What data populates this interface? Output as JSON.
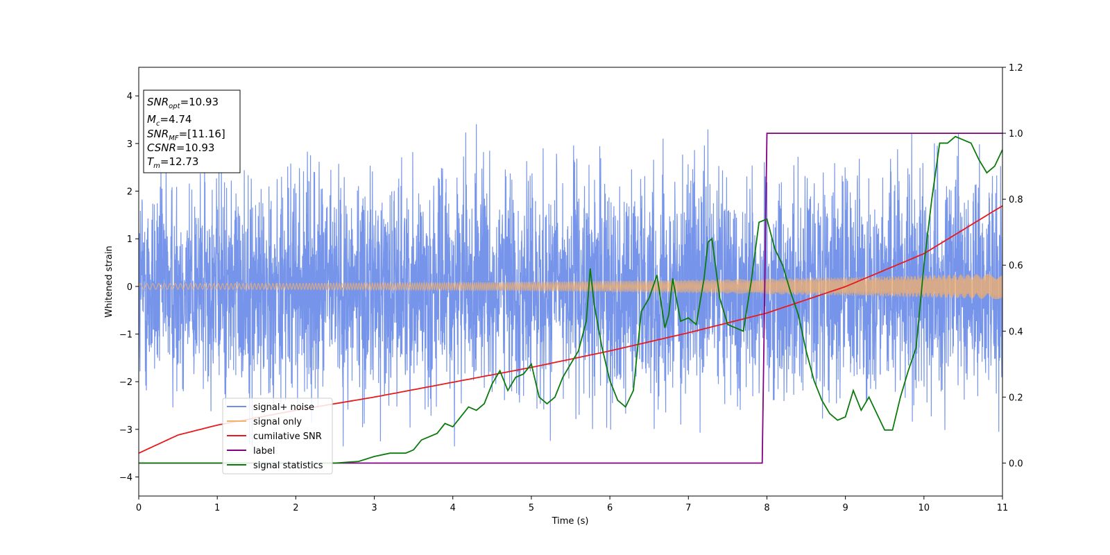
{
  "chart_data": {
    "type": "line",
    "title": "",
    "xlabel": "Time (s)",
    "ylabel": "Whitened strain",
    "xlim": [
      0,
      11
    ],
    "ylim": [
      -4.4,
      4.6
    ],
    "y2lim": [
      -0.1,
      1.2
    ],
    "xticks": [
      "0",
      "1",
      "2",
      "3",
      "4",
      "5",
      "6",
      "7",
      "8",
      "9",
      "10",
      "11"
    ],
    "yticks": [
      "−4",
      "−3",
      "−2",
      "−1",
      "0",
      "1",
      "2",
      "3",
      "4"
    ],
    "y2ticks": [
      "0.0",
      "0.2",
      "0.4",
      "0.6",
      "0.8",
      "1.0",
      "1.2"
    ],
    "grid": false,
    "legend_position": "lower-left",
    "series": [
      {
        "name": "signal+ noise",
        "axis": "left",
        "color": "#6f8ee8",
        "kind": "noise",
        "description_values": {
          "std": 1.1,
          "min": -3.95,
          "max": 4.15,
          "duration": 11
        }
      },
      {
        "name": "signal only",
        "axis": "left",
        "color": "#f5b06a",
        "kind": "chirp",
        "amplitude_start": 0.06,
        "amplitude_end": 0.27
      },
      {
        "name": "cumilative SNR",
        "axis": "right",
        "color": "#e8191b",
        "x": [
          0,
          0.5,
          1,
          2,
          3,
          4,
          5,
          6,
          7,
          8,
          9,
          10,
          11
        ],
        "y": [
          0.03,
          0.085,
          0.115,
          0.16,
          0.2,
          0.245,
          0.29,
          0.34,
          0.395,
          0.455,
          0.535,
          0.635,
          0.78
        ]
      },
      {
        "name": "label",
        "axis": "right",
        "color": "#800080",
        "x": [
          0,
          7.94,
          8.0,
          11
        ],
        "y": [
          0.0,
          0.0,
          1.0,
          1.0
        ]
      },
      {
        "name": "signal statistics",
        "axis": "right",
        "color": "#0a7a0a",
        "x": [
          0,
          2.5,
          2.8,
          3.0,
          3.2,
          3.4,
          3.5,
          3.6,
          3.8,
          3.9,
          4.0,
          4.1,
          4.2,
          4.3,
          4.4,
          4.5,
          4.6,
          4.7,
          4.8,
          4.9,
          5.0,
          5.1,
          5.2,
          5.3,
          5.4,
          5.5,
          5.6,
          5.7,
          5.75,
          5.8,
          5.9,
          6.0,
          6.1,
          6.2,
          6.3,
          6.4,
          6.5,
          6.6,
          6.7,
          6.75,
          6.8,
          6.9,
          7.0,
          7.1,
          7.2,
          7.25,
          7.3,
          7.4,
          7.5,
          7.6,
          7.7,
          7.8,
          7.9,
          8.0,
          8.1,
          8.2,
          8.3,
          8.4,
          8.5,
          8.6,
          8.7,
          8.8,
          8.9,
          9.0,
          9.1,
          9.2,
          9.3,
          9.4,
          9.5,
          9.6,
          9.7,
          9.8,
          9.9,
          10.0,
          10.1,
          10.2,
          10.3,
          10.4,
          10.5,
          10.6,
          10.7,
          10.8,
          10.9,
          11.0
        ],
        "y": [
          0.0,
          0.0,
          0.005,
          0.02,
          0.03,
          0.03,
          0.04,
          0.07,
          0.09,
          0.12,
          0.11,
          0.14,
          0.17,
          0.16,
          0.18,
          0.24,
          0.28,
          0.22,
          0.26,
          0.27,
          0.3,
          0.2,
          0.18,
          0.2,
          0.26,
          0.3,
          0.34,
          0.43,
          0.59,
          0.48,
          0.35,
          0.25,
          0.19,
          0.17,
          0.22,
          0.46,
          0.5,
          0.57,
          0.41,
          0.45,
          0.56,
          0.43,
          0.44,
          0.42,
          0.56,
          0.67,
          0.68,
          0.5,
          0.42,
          0.41,
          0.4,
          0.55,
          0.73,
          0.74,
          0.65,
          0.6,
          0.52,
          0.45,
          0.34,
          0.25,
          0.19,
          0.15,
          0.13,
          0.14,
          0.22,
          0.16,
          0.2,
          0.15,
          0.1,
          0.1,
          0.2,
          0.28,
          0.35,
          0.6,
          0.8,
          0.97,
          0.97,
          0.99,
          0.98,
          0.97,
          0.92,
          0.88,
          0.9,
          0.95
        ]
      }
    ],
    "annotation": {
      "lines": [
        {
          "main": "SNR",
          "sub": "opt",
          "rest": "=10.93"
        },
        {
          "main": "M",
          "sub": "c",
          "rest": "=4.74"
        },
        {
          "main": "SNR",
          "sub": "MF",
          "rest": "=[11.16]"
        },
        {
          "main": "CSNR",
          "sub": "",
          "rest": "=10.93"
        },
        {
          "main": "T",
          "sub": "m",
          "rest": "=12.73"
        }
      ]
    }
  }
}
